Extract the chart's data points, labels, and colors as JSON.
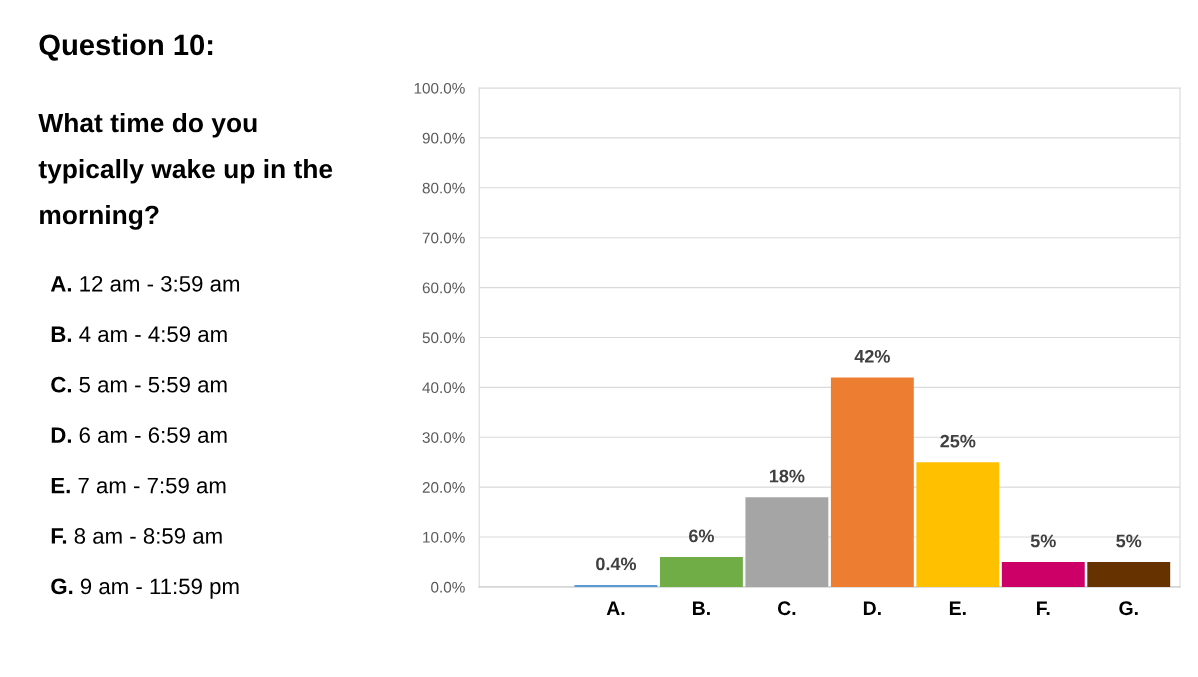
{
  "chart_data": {
    "type": "bar",
    "title": "Question 10:",
    "subtitle": "What time do you typically wake up in the morning?",
    "annotations": [
      "A. 12 am - 3:59 am",
      "B. 4 am - 4:59 am",
      "C. 5 am - 5:59 am",
      "D. 6 am - 6:59 am",
      "E. 7 am - 7:59 am",
      "F. 8 am - 8:59 am",
      "G. 9 am - 11:59 pm"
    ],
    "categories": [
      "A.",
      "B.",
      "C.",
      "D.",
      "E.",
      "F.",
      "G."
    ],
    "values": [
      0.4,
      6,
      18,
      42,
      25,
      5,
      5
    ],
    "value_labels": [
      "0.4%",
      "6%",
      "18%",
      "42%",
      "25%",
      "5%",
      "5%"
    ],
    "colors": [
      "#5b9bd5",
      "#70ad47",
      "#a5a5a5",
      "#ed7d31",
      "#ffc000",
      "#cc0066",
      "#663300"
    ],
    "ylim": [
      0,
      100
    ],
    "yticks": [
      {
        "value": 0,
        "label": "0.0%"
      },
      {
        "value": 10,
        "label": "10.0%"
      },
      {
        "value": 20,
        "label": "20.0%"
      },
      {
        "value": 30,
        "label": "30.0%"
      },
      {
        "value": 40,
        "label": "40.0%"
      },
      {
        "value": 50,
        "label": "50.0%"
      },
      {
        "value": 60,
        "label": "60.0%"
      },
      {
        "value": 70,
        "label": "70.0%"
      },
      {
        "value": 80,
        "label": "80.0%"
      },
      {
        "value": 90,
        "label": "90.0%"
      },
      {
        "value": 100,
        "label": "100.0%"
      }
    ],
    "grid": "y",
    "legend": false
  }
}
